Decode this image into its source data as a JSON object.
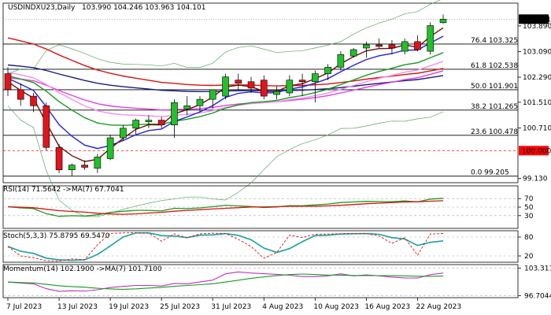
{
  "chart_data": {
    "type": "candlestick",
    "title": "USDINDXU23,Daily",
    "ohlc_header": "103.990 104.246 103.963 104.101",
    "current_price": "104.101",
    "ref_price_label": "100.000",
    "price_axis": {
      "min": 99.0,
      "max": 104.6,
      "ticks": [
        "103.890",
        "103.090",
        "102.290",
        "101.510",
        "100.710",
        "99.130"
      ]
    },
    "fib_levels": [
      {
        "label": "76.4 103.325",
        "value": 103.325
      },
      {
        "label": "61.8 102.538",
        "value": 102.538
      },
      {
        "label": "50.0 101.901",
        "value": 101.901
      },
      {
        "label": "38.2 101.265",
        "value": 101.265
      },
      {
        "label": "23.6 100.478",
        "value": 100.478
      },
      {
        "label": "0.0 99.205",
        "value": 99.205
      }
    ],
    "ref_level": 100.0,
    "dates": [
      "7 Jul 2023",
      "13 Jul 2023",
      "19 Jul 2023",
      "25 Jul 2023",
      "31 Jul 2023",
      "4 Aug 2023",
      "10 Aug 2023",
      "16 Aug 2023",
      "22 Aug 2023"
    ],
    "candles": [
      {
        "o": 102.4,
        "h": 102.6,
        "l": 101.7,
        "c": 101.9
      },
      {
        "o": 101.9,
        "h": 102.1,
        "l": 101.4,
        "c": 101.6
      },
      {
        "o": 101.7,
        "h": 101.8,
        "l": 101.2,
        "c": 101.4
      },
      {
        "o": 101.4,
        "h": 101.5,
        "l": 100.0,
        "c": 100.1
      },
      {
        "o": 100.1,
        "h": 100.2,
        "l": 99.3,
        "c": 99.4
      },
      {
        "o": 99.4,
        "h": 99.6,
        "l": 99.2,
        "c": 99.55
      },
      {
        "o": 99.55,
        "h": 99.7,
        "l": 99.4,
        "c": 99.48
      },
      {
        "o": 99.45,
        "h": 99.9,
        "l": 99.3,
        "c": 99.8
      },
      {
        "o": 99.75,
        "h": 100.5,
        "l": 99.7,
        "c": 100.4
      },
      {
        "o": 100.4,
        "h": 100.8,
        "l": 100.3,
        "c": 100.7
      },
      {
        "o": 100.7,
        "h": 101.0,
        "l": 100.5,
        "c": 100.95
      },
      {
        "o": 100.9,
        "h": 101.1,
        "l": 100.7,
        "c": 100.95
      },
      {
        "o": 100.95,
        "h": 101.05,
        "l": 100.7,
        "c": 100.8
      },
      {
        "o": 100.8,
        "h": 101.6,
        "l": 100.4,
        "c": 101.5
      },
      {
        "o": 101.3,
        "h": 101.7,
        "l": 101.1,
        "c": 101.4
      },
      {
        "o": 101.4,
        "h": 101.7,
        "l": 101.2,
        "c": 101.6
      },
      {
        "o": 101.6,
        "h": 101.9,
        "l": 101.3,
        "c": 101.9
      },
      {
        "o": 101.7,
        "h": 102.4,
        "l": 101.6,
        "c": 102.3
      },
      {
        "o": 102.2,
        "h": 102.4,
        "l": 101.9,
        "c": 102.1
      },
      {
        "o": 102.15,
        "h": 102.3,
        "l": 101.8,
        "c": 101.95
      },
      {
        "o": 102.2,
        "h": 102.35,
        "l": 101.6,
        "c": 101.7
      },
      {
        "o": 101.75,
        "h": 102.0,
        "l": 101.6,
        "c": 101.85
      },
      {
        "o": 101.8,
        "h": 102.35,
        "l": 101.7,
        "c": 102.2
      },
      {
        "o": 102.2,
        "h": 102.4,
        "l": 101.7,
        "c": 102.15
      },
      {
        "o": 102.15,
        "h": 102.5,
        "l": 101.5,
        "c": 102.4
      },
      {
        "o": 102.4,
        "h": 102.7,
        "l": 102.2,
        "c": 102.6
      },
      {
        "o": 102.6,
        "h": 103.1,
        "l": 102.5,
        "c": 103.0
      },
      {
        "o": 102.95,
        "h": 103.2,
        "l": 102.9,
        "c": 103.15
      },
      {
        "o": 103.2,
        "h": 103.4,
        "l": 102.9,
        "c": 103.3
      },
      {
        "o": 103.3,
        "h": 103.5,
        "l": 103.2,
        "c": 103.25
      },
      {
        "o": 103.3,
        "h": 103.45,
        "l": 103.0,
        "c": 103.2
      },
      {
        "o": 103.1,
        "h": 103.5,
        "l": 103.0,
        "c": 103.4
      },
      {
        "o": 103.4,
        "h": 103.6,
        "l": 103.1,
        "c": 103.15
      },
      {
        "o": 103.1,
        "h": 104.0,
        "l": 103.0,
        "c": 103.9
      },
      {
        "o": 103.99,
        "h": 104.246,
        "l": 103.963,
        "c": 104.101
      }
    ],
    "indicators": {
      "rsi": {
        "label": "RSI(14) 71.5642 ->MA(7) 67.7041",
        "ticks": [
          "70",
          "50",
          "30"
        ],
        "min": 0,
        "max": 100
      },
      "stoch": {
        "label": "Stoch(5,3,3) 75.8795 69.5470",
        "ticks": [
          "80",
          "20"
        ],
        "min": 0,
        "max": 100
      },
      "momentum": {
        "label": "Momentum(14) 102.1900 ->MA(7) 101.7100",
        "ticks": [
          "103.3116",
          "96.7044"
        ],
        "min": 96.2,
        "max": 104.2
      }
    },
    "colors": {
      "bull": "#22c02a",
      "bear": "#e2141b",
      "ma_red": "#d8140f",
      "ma_navy": "#1a1a7a",
      "ma_magenta": "#e040e0",
      "ma_pink": "#f090f0",
      "ma_green": "#1a9a20",
      "ma_blue": "#2222dd",
      "ma_dark": "#6a1010",
      "bollinger": "#5aa860",
      "current_label_bg": "#000000",
      "ref_label_bg": "#ff0000"
    }
  }
}
